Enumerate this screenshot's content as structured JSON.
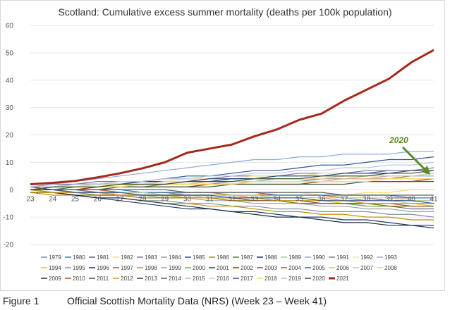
{
  "chart_data": {
    "type": "line",
    "title": "Scotland: Cumulative excess summer mortality (deaths per 100k population)",
    "xlabel": "",
    "ylabel": "",
    "x": [
      23,
      24,
      25,
      26,
      27,
      28,
      29,
      30,
      31,
      32,
      33,
      34,
      35,
      36,
      37,
      38,
      39,
      40,
      41
    ],
    "x_tick_labels": [
      "23",
      "24",
      "25",
      "26",
      "27",
      "28",
      "29",
      "30",
      "31",
      "32",
      "33",
      "34",
      "35",
      "36",
      "37",
      "38",
      "39",
      "40",
      "41"
    ],
    "ylim": [
      -20,
      60
    ],
    "y_ticks": [
      -20,
      -10,
      0,
      10,
      20,
      30,
      40,
      50,
      60
    ],
    "y_tick_labels": [
      "-20",
      "-10",
      "0",
      "10",
      "20",
      "30",
      "40",
      "50",
      "60"
    ],
    "grid": true,
    "legend_position": "bottom",
    "annotation": {
      "text": "2020",
      "x": 41,
      "y": 6
    },
    "series": [
      {
        "name": "1979",
        "color": "#7f8fa6",
        "values": [
          0,
          -1,
          -2,
          -3,
          -3,
          -4,
          -4,
          -5,
          -5,
          -6,
          -6,
          -7,
          -7,
          -8,
          -8,
          -8,
          -9,
          -9,
          -10
        ]
      },
      {
        "name": "1980",
        "color": "#4472c4",
        "values": [
          1,
          1,
          2,
          2,
          2,
          3,
          3,
          3,
          4,
          4,
          4,
          5,
          5,
          6,
          6,
          6,
          7,
          7,
          7
        ]
      },
      {
        "name": "1981",
        "color": "#5b6b8c",
        "values": [
          0,
          0,
          -1,
          -1,
          -2,
          -2,
          -2,
          -3,
          -3,
          -3,
          -4,
          -4,
          -5,
          -5,
          -5,
          -6,
          -6,
          -7,
          -7
        ]
      },
      {
        "name": "1982",
        "color": "#ffd966",
        "values": [
          -1,
          -1,
          -1,
          -2,
          -1,
          -2,
          -2,
          -1,
          -1,
          -2,
          -2,
          -1,
          -1,
          -2,
          -2,
          -1,
          -1,
          0,
          0
        ]
      },
      {
        "name": "1983",
        "color": "#7f6f9f",
        "values": [
          1,
          2,
          2,
          3,
          3,
          3,
          4,
          4,
          4,
          5,
          5,
          5,
          6,
          6,
          6,
          7,
          7,
          7,
          8
        ]
      },
      {
        "name": "1984",
        "color": "#9e9e9e",
        "values": [
          0,
          -1,
          -1,
          -2,
          -2,
          -3,
          -3,
          -3,
          -4,
          -4,
          -5,
          -5,
          -5,
          -6,
          -6,
          -7,
          -7,
          -8,
          -8
        ]
      },
      {
        "name": "1985",
        "color": "#2f5597",
        "values": [
          0,
          1,
          1,
          2,
          2,
          3,
          4,
          5,
          5,
          6,
          7,
          7,
          8,
          9,
          9,
          10,
          11,
          11,
          12
        ]
      },
      {
        "name": "1986",
        "color": "#bf9000",
        "values": [
          -1,
          -2,
          -2,
          -3,
          -3,
          -4,
          -5,
          -5,
          -6,
          -6,
          -7,
          -8,
          -8,
          -9,
          -9,
          -10,
          -10,
          -11,
          -11
        ]
      },
      {
        "name": "1987",
        "color": "#548235",
        "values": [
          0,
          0,
          1,
          1,
          1,
          1,
          2,
          2,
          2,
          2,
          3,
          3,
          3,
          4,
          4,
          4,
          4,
          5,
          5
        ]
      },
      {
        "name": "1988",
        "color": "#1f3864",
        "values": [
          1,
          0,
          0,
          -1,
          -1,
          -1,
          -2,
          -2,
          -3,
          -3,
          -3,
          -4,
          -4,
          -5,
          -5,
          -5,
          -6,
          -6,
          -6
        ]
      },
      {
        "name": "1989",
        "color": "#a9d18e",
        "values": [
          0,
          1,
          1,
          1,
          2,
          2,
          2,
          3,
          3,
          3,
          3,
          4,
          4,
          4,
          4,
          5,
          5,
          5,
          5
        ]
      },
      {
        "name": "1990",
        "color": "#8faadc",
        "values": [
          1,
          2,
          3,
          4,
          5,
          6,
          7,
          8,
          9,
          10,
          11,
          11,
          12,
          12,
          13,
          13,
          13,
          14,
          14
        ]
      },
      {
        "name": "1991",
        "color": "#7f7f7f",
        "values": [
          0,
          0,
          0,
          -1,
          -1,
          -1,
          -1,
          -2,
          -2,
          -2,
          -2,
          -3,
          -3,
          -3,
          -3,
          -4,
          -4,
          -4,
          -4
        ]
      },
      {
        "name": "1992",
        "color": "#ffe699",
        "values": [
          1,
          1,
          2,
          2,
          3,
          3,
          3,
          4,
          4,
          4,
          5,
          5,
          5,
          6,
          6,
          6,
          6,
          7,
          7
        ]
      },
      {
        "name": "1993",
        "color": "#b4a7d6",
        "values": [
          0,
          0,
          -1,
          -1,
          -1,
          -2,
          -2,
          -2,
          -3,
          -3,
          -3,
          -4,
          -4,
          -4,
          -4,
          -5,
          -5,
          -5,
          -5
        ]
      },
      {
        "name": "1994",
        "color": "#ffc000",
        "values": [
          0,
          -1,
          -1,
          -1,
          -2,
          -2,
          -2,
          -3,
          -3,
          -3,
          -3,
          -4,
          -4,
          -4,
          -5,
          -5,
          -5,
          -5,
          -6
        ]
      },
      {
        "name": "1995",
        "color": "#8497b0",
        "values": [
          0,
          1,
          1,
          1,
          1,
          2,
          2,
          2,
          2,
          3,
          3,
          3,
          3,
          3,
          4,
          4,
          4,
          4,
          4
        ]
      },
      {
        "name": "1996",
        "color": "#203864",
        "values": [
          0,
          -1,
          -2,
          -3,
          -4,
          -5,
          -6,
          -7,
          -7,
          -8,
          -8,
          -9,
          -10,
          -10,
          -11,
          -11,
          -12,
          -13,
          -13
        ]
      },
      {
        "name": "1997",
        "color": "#c55a11",
        "values": [
          0,
          0,
          0,
          0,
          -1,
          -1,
          -1,
          -1,
          -1,
          -2,
          -2,
          -2,
          -2,
          -2,
          -3,
          -3,
          -3,
          -3,
          -3
        ]
      },
      {
        "name": "1998",
        "color": "#ed7d31",
        "values": [
          0,
          0,
          -1,
          -1,
          -1,
          -1,
          -2,
          -2,
          -2,
          -2,
          -3,
          -3,
          -3,
          -3,
          -4,
          -4,
          -4,
          -4,
          -4
        ]
      },
      {
        "name": "1999",
        "color": "#a5a5a5",
        "values": [
          1,
          1,
          1,
          2,
          2,
          2,
          2,
          3,
          3,
          3,
          3,
          4,
          4,
          4,
          4,
          4,
          5,
          5,
          5
        ]
      },
      {
        "name": "2000",
        "color": "#70ad47",
        "values": [
          0,
          -1,
          -1,
          -2,
          -2,
          -2,
          -3,
          -3,
          -3,
          -4,
          -4,
          -4,
          -5,
          -5,
          -5,
          -6,
          -6,
          -6,
          -6
        ]
      },
      {
        "name": "2001",
        "color": "#264478",
        "values": [
          1,
          1,
          2,
          2,
          2,
          3,
          3,
          3,
          4,
          4,
          4,
          5,
          5,
          5,
          6,
          6,
          6,
          7,
          7
        ]
      },
      {
        "name": "2002",
        "color": "#843c0c",
        "values": [
          0,
          0,
          0,
          1,
          1,
          1,
          1,
          1,
          2,
          2,
          2,
          2,
          2,
          3,
          3,
          3,
          3,
          3,
          4
        ]
      },
      {
        "name": "2003",
        "color": "#636363",
        "values": [
          0,
          0,
          -1,
          -1,
          -1,
          -1,
          -2,
          -2,
          -2,
          -2,
          -2,
          -3,
          -3,
          -3,
          -3,
          -3,
          -4,
          -4,
          -4
        ]
      },
      {
        "name": "2004",
        "color": "#997300",
        "values": [
          -1,
          -1,
          -2,
          -2,
          -2,
          -3,
          -3,
          -3,
          -3,
          -4,
          -4,
          -4,
          -5,
          -5,
          -5,
          -5,
          -6,
          -6,
          -6
        ]
      },
      {
        "name": "2005",
        "color": "#2e75b6",
        "values": [
          0,
          0,
          0,
          0,
          0,
          -1,
          -1,
          -1,
          -1,
          -1,
          -1,
          -2,
          -2,
          -2,
          -2,
          -2,
          -2,
          -3,
          -3
        ]
      },
      {
        "name": "2006",
        "color": "#f4b183",
        "values": [
          1,
          1,
          1,
          2,
          2,
          2,
          2,
          2,
          3,
          3,
          3,
          3,
          3,
          3,
          4,
          4,
          4,
          4,
          4
        ]
      },
      {
        "name": "2007",
        "color": "#c9c9c9",
        "values": [
          0,
          -1,
          -1,
          -1,
          -2,
          -2,
          -2,
          -2,
          -3,
          -3,
          -3,
          -3,
          -3,
          -4,
          -4,
          -4,
          -4,
          -5,
          -5
        ]
      },
      {
        "name": "2008",
        "color": "#c5e0b4",
        "values": [
          0,
          0,
          -1,
          -1,
          -1,
          -1,
          -2,
          -2,
          -2,
          -2,
          -2,
          -3,
          -3,
          -3,
          -3,
          -3,
          -3,
          -4,
          -4
        ]
      },
      {
        "name": "2009",
        "color": "#1f2a44",
        "values": [
          0,
          -1,
          -2,
          -3,
          -3,
          -4,
          -5,
          -6,
          -7,
          -8,
          -9,
          -10,
          -10,
          -11,
          -12,
          -12,
          -13,
          -13,
          -14
        ]
      },
      {
        "name": "2010",
        "color": "#a0522d",
        "values": [
          0,
          0,
          -1,
          -1,
          -2,
          -2,
          -2,
          -3,
          -3,
          -3,
          -4,
          -4,
          -4,
          -5,
          -5,
          -5,
          -5,
          -6,
          -6
        ]
      },
      {
        "name": "2011",
        "color": "#3a5a40",
        "values": [
          0,
          0,
          0,
          0,
          1,
          1,
          1,
          1,
          1,
          2,
          2,
          2,
          2,
          2,
          2,
          3,
          3,
          3,
          3
        ]
      },
      {
        "name": "2012",
        "color": "#d4a017",
        "values": [
          0,
          -1,
          -1,
          -1,
          -2,
          -2,
          -2,
          -3,
          -3,
          -3,
          -3,
          -4,
          -4,
          -4,
          -4,
          -5,
          -5,
          -5,
          -5
        ]
      },
      {
        "name": "2013",
        "color": "#254061",
        "values": [
          1,
          1,
          2,
          2,
          2,
          3,
          3,
          3,
          3,
          4,
          4,
          4,
          4,
          4,
          5,
          5,
          5,
          5,
          6
        ]
      },
      {
        "name": "2014",
        "color": "#5f5f5f",
        "values": [
          0,
          0,
          0,
          0,
          0,
          0,
          0,
          -1,
          -1,
          -1,
          -1,
          -1,
          -1,
          -1,
          -2,
          -2,
          -2,
          -2,
          -2
        ]
      },
      {
        "name": "2015",
        "color": "#9dc3e6",
        "values": [
          0,
          1,
          1,
          2,
          2,
          2,
          3,
          3,
          3,
          3,
          4,
          4,
          4,
          4,
          5,
          5,
          5,
          5,
          5
        ]
      },
      {
        "name": "2016",
        "color": "#f8cbad",
        "values": [
          1,
          1,
          1,
          2,
          2,
          2,
          3,
          3,
          3,
          3,
          4,
          4,
          4,
          4,
          5,
          5,
          5,
          5,
          6
        ]
      },
      {
        "name": "2017",
        "color": "#2f5597",
        "values": [
          0,
          0,
          -1,
          -1,
          -1,
          -2,
          -2,
          -2,
          -2,
          -3,
          -3,
          -3,
          -3,
          -4,
          -4,
          -4,
          -4,
          -4,
          -5
        ]
      },
      {
        "name": "2018",
        "color": "#ffd966",
        "values": [
          0,
          1,
          1,
          1,
          1,
          2,
          2,
          2,
          2,
          2,
          3,
          3,
          3,
          3,
          3,
          3,
          4,
          4,
          4
        ]
      },
      {
        "name": "2019",
        "color": "#b4c7e7",
        "values": [
          1,
          1,
          2,
          2,
          3,
          3,
          4,
          4,
          5,
          5,
          6,
          6,
          7,
          7,
          8,
          8,
          9,
          9,
          10
        ]
      },
      {
        "name": "2020",
        "color": "#375623",
        "values": [
          0,
          1,
          1,
          1,
          2,
          2,
          2,
          3,
          3,
          3,
          4,
          4,
          4,
          5,
          5,
          5,
          6,
          6,
          7
        ]
      },
      {
        "name": "2021",
        "color": "#a52a1c",
        "values": [
          2,
          2.5,
          3.2,
          4.5,
          6,
          7.8,
          10,
          13.5,
          15,
          16.5,
          19.5,
          22,
          25.5,
          27.8,
          32.5,
          36.5,
          40.5,
          46.5,
          51
        ]
      }
    ]
  },
  "caption": {
    "label": "Figure 1",
    "text": "Official Scottish Mortality Data (NRS) (Week 23 – Week 41)"
  }
}
